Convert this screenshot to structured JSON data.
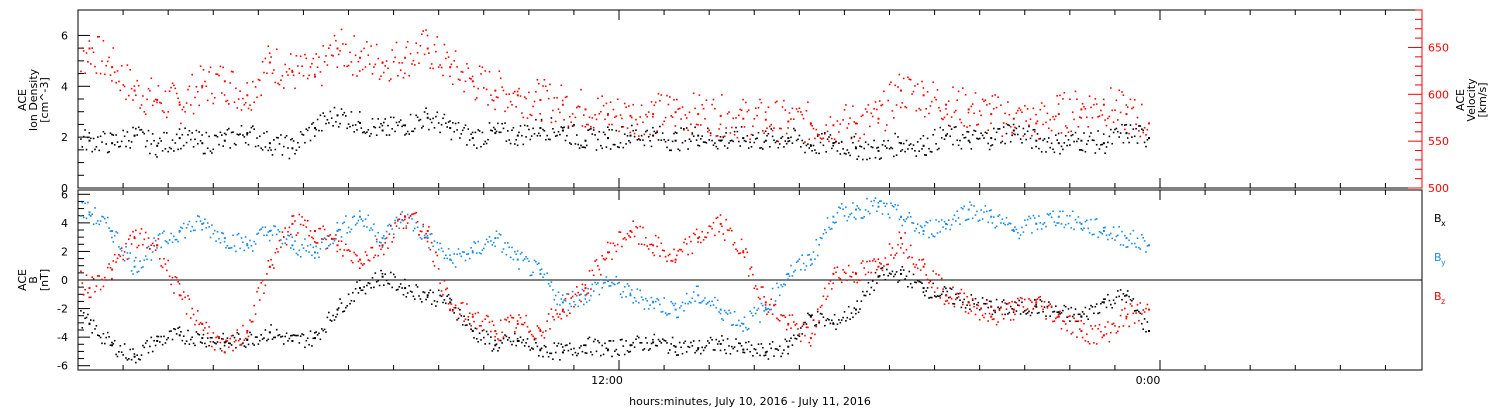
{
  "chart_data": {
    "type": "scatter",
    "xlabel": "hours:minutes, July 10, 2016 - July 11, 2016",
    "x_ticks": [
      "12:00",
      "0:00"
    ],
    "colors": {
      "black": "#000000",
      "red": "#ff0000",
      "blue": "#1a8be6"
    },
    "panels": [
      {
        "name": "ion-density-velocity",
        "ylabel_left": [
          "ACE",
          "Ion Density",
          "[cm^-3]"
        ],
        "ylabel_right": [
          "ACE",
          "Velocity",
          "[km/s]"
        ],
        "ylim_left": [
          0,
          7
        ],
        "left_ticks": [
          0,
          2,
          4,
          6
        ],
        "ylim_right": [
          500,
          690
        ],
        "right_ticks": [
          500,
          550,
          600,
          650
        ],
        "series": [
          {
            "axis": "left",
            "color": "black",
            "x": [
              0.0,
              0.5,
              1.0,
              1.5,
              2.0,
              2.5,
              3.0,
              3.5,
              4.0,
              4.5,
              5.0,
              5.5,
              6.0,
              6.5,
              7.0,
              7.5,
              8.0,
              8.5,
              9.0,
              9.5,
              10.0,
              10.5,
              11.0,
              11.5,
              12.0,
              12.5,
              13.0,
              13.5,
              14.0,
              14.5,
              15.0,
              15.5,
              16.0,
              16.5,
              17.0,
              17.5,
              18.0,
              18.5,
              19.0,
              19.5,
              20.0,
              20.5,
              21.0,
              21.5,
              22.0,
              22.5,
              23.0,
              23.5,
              24.0
            ],
            "y": [
              2.0,
              1.9,
              1.8,
              2.1,
              1.7,
              2.0,
              1.8,
              1.9,
              2.2,
              1.8,
              1.6,
              2.4,
              2.9,
              2.6,
              2.3,
              2.5,
              2.8,
              2.4,
              2.0,
              2.2,
              2.1,
              2.4,
              2.3,
              1.9,
              2.0,
              2.1,
              2.1,
              1.9,
              2.1,
              1.9,
              2.0,
              1.9,
              2.0,
              1.7,
              1.8,
              1.6,
              1.5,
              1.8,
              1.7,
              2.1,
              1.9,
              2.0,
              2.3,
              1.9,
              1.8,
              1.9,
              1.8,
              2.2,
              2.0
            ]
          },
          {
            "axis": "right",
            "color": "red",
            "x": [
              0.0,
              0.5,
              1.0,
              1.5,
              2.0,
              2.5,
              3.0,
              3.5,
              4.0,
              4.5,
              5.0,
              5.5,
              6.0,
              6.5,
              7.0,
              7.5,
              8.0,
              8.5,
              9.0,
              9.5,
              10.0,
              10.5,
              11.0,
              11.5,
              12.0,
              12.5,
              13.0,
              13.5,
              14.0,
              14.5,
              15.0,
              15.5,
              16.0,
              16.5,
              17.0,
              17.5,
              18.0,
              18.5,
              19.0,
              19.5,
              20.0,
              20.5,
              21.0,
              21.5,
              22.0,
              22.5,
              23.0,
              23.5,
              24.0
            ],
            "y": [
              610,
              650,
              630,
              605,
              595,
              590,
              610,
              615,
              600,
              635,
              625,
              620,
              650,
              640,
              635,
              640,
              650,
              630,
              615,
              605,
              600,
              595,
              590,
              585,
              580,
              578,
              580,
              582,
              580,
              578,
              575,
              574,
              572,
              570,
              568,
              570,
              575,
              605,
              600,
              590,
              585,
              580,
              575,
              570,
              580,
              585,
              590,
              580,
              570
            ]
          }
        ]
      },
      {
        "name": "magnetic-field",
        "ylabel_left": [
          "ACE",
          "B",
          "[nT]"
        ],
        "ylim": [
          -6.3,
          6.3
        ],
        "ticks": [
          -6,
          -4,
          -2,
          0,
          2,
          4,
          6
        ],
        "legend": [
          {
            "label": "B",
            "subscript": "x",
            "color": "black"
          },
          {
            "label": "B",
            "subscript": "y",
            "color": "blue"
          },
          {
            "label": "B",
            "subscript": "z",
            "color": "red"
          }
        ],
        "series": [
          {
            "name": "Bx",
            "color": "black",
            "x": [
              0.0,
              0.5,
              1.0,
              1.5,
              2.0,
              2.5,
              3.0,
              3.5,
              4.0,
              4.5,
              5.0,
              5.5,
              6.0,
              6.5,
              7.0,
              7.5,
              8.0,
              8.5,
              9.0,
              9.5,
              10.0,
              10.5,
              11.0,
              11.5,
              12.0,
              12.5,
              13.0,
              13.5,
              14.0,
              14.5,
              15.0,
              15.5,
              16.0,
              16.5,
              17.0,
              17.5,
              18.0,
              18.5,
              19.0,
              19.5,
              20.0,
              20.5,
              21.0,
              21.5,
              22.0,
              22.5,
              23.0,
              23.5,
              24.0
            ],
            "y": [
              -2.0,
              -3.0,
              -4.5,
              -5.3,
              -4.2,
              -3.8,
              -4.0,
              -4.3,
              -4.1,
              -3.6,
              -4.2,
              -4.0,
              -2.0,
              -0.5,
              0.3,
              -0.5,
              -1.0,
              -1.5,
              -3.5,
              -4.5,
              -4.2,
              -4.8,
              -5.0,
              -4.5,
              -4.8,
              -4.5,
              -4.3,
              -4.6,
              -4.7,
              -4.4,
              -4.8,
              -5.0,
              -4.6,
              -2.5,
              -3.0,
              -2.0,
              0.3,
              0.5,
              -0.5,
              -1.0,
              -1.5,
              -1.8,
              -2.0,
              -1.8,
              -2.2,
              -2.5,
              -1.5,
              -1.0,
              -3.5
            ]
          },
          {
            "name": "By",
            "color": "blue",
            "x": [
              0.0,
              0.5,
              1.0,
              1.5,
              2.0,
              2.5,
              3.0,
              3.5,
              4.0,
              4.5,
              5.0,
              5.5,
              6.0,
              6.5,
              7.0,
              7.5,
              8.0,
              8.5,
              9.0,
              9.5,
              10.0,
              10.5,
              11.0,
              11.5,
              12.0,
              12.5,
              13.0,
              13.5,
              14.0,
              14.5,
              15.0,
              15.5,
              16.0,
              16.5,
              17.0,
              17.5,
              18.0,
              18.5,
              19.0,
              19.5,
              20.0,
              20.5,
              21.0,
              21.5,
              22.0,
              22.5,
              23.0,
              23.5,
              24.0
            ],
            "y": [
              5.2,
              4.8,
              3.5,
              1.0,
              2.5,
              3.5,
              4.0,
              3.0,
              2.5,
              3.5,
              2.5,
              2.0,
              3.5,
              4.5,
              3.0,
              4.5,
              3.0,
              1.5,
              2.0,
              3.0,
              1.5,
              0.5,
              -1.5,
              -1.0,
              0.0,
              -1.0,
              -1.5,
              -2.0,
              -1.0,
              -2.0,
              -3.0,
              -2.0,
              0.5,
              1.5,
              4.5,
              5.0,
              5.2,
              4.5,
              3.5,
              4.0,
              5.0,
              4.5,
              3.5,
              4.0,
              4.5,
              4.0,
              3.5,
              3.0,
              2.5
            ]
          },
          {
            "name": "Bz",
            "color": "red",
            "x": [
              0.0,
              0.5,
              1.0,
              1.5,
              2.0,
              2.5,
              3.0,
              3.5,
              4.0,
              4.5,
              5.0,
              5.5,
              6.0,
              6.5,
              7.0,
              7.5,
              8.0,
              8.5,
              9.0,
              9.5,
              10.0,
              10.5,
              11.0,
              11.5,
              12.0,
              12.5,
              13.0,
              13.5,
              14.0,
              14.5,
              15.0,
              15.5,
              16.0,
              16.5,
              17.0,
              17.5,
              18.0,
              18.5,
              19.0,
              19.5,
              20.0,
              20.5,
              21.0,
              21.5,
              22.0,
              22.5,
              23.0,
              23.5,
              24.0
            ],
            "y": [
              0.5,
              -0.5,
              0.8,
              3.0,
              2.5,
              -1.0,
              -3.0,
              -5.0,
              -3.5,
              1.0,
              4.0,
              3.5,
              2.5,
              1.5,
              2.5,
              4.5,
              3.5,
              -2.0,
              -2.5,
              -3.5,
              -3.0,
              -3.5,
              -2.0,
              -0.5,
              2.0,
              3.5,
              2.5,
              1.5,
              3.0,
              4.0,
              2.0,
              -1.5,
              -3.0,
              -4.0,
              0.5,
              0.5,
              1.0,
              3.0,
              1.0,
              -1.0,
              -1.5,
              -2.5,
              -2.0,
              -1.5,
              -2.5,
              -3.5,
              -3.8,
              -2.5,
              -2.0
            ]
          }
        ]
      }
    ]
  }
}
